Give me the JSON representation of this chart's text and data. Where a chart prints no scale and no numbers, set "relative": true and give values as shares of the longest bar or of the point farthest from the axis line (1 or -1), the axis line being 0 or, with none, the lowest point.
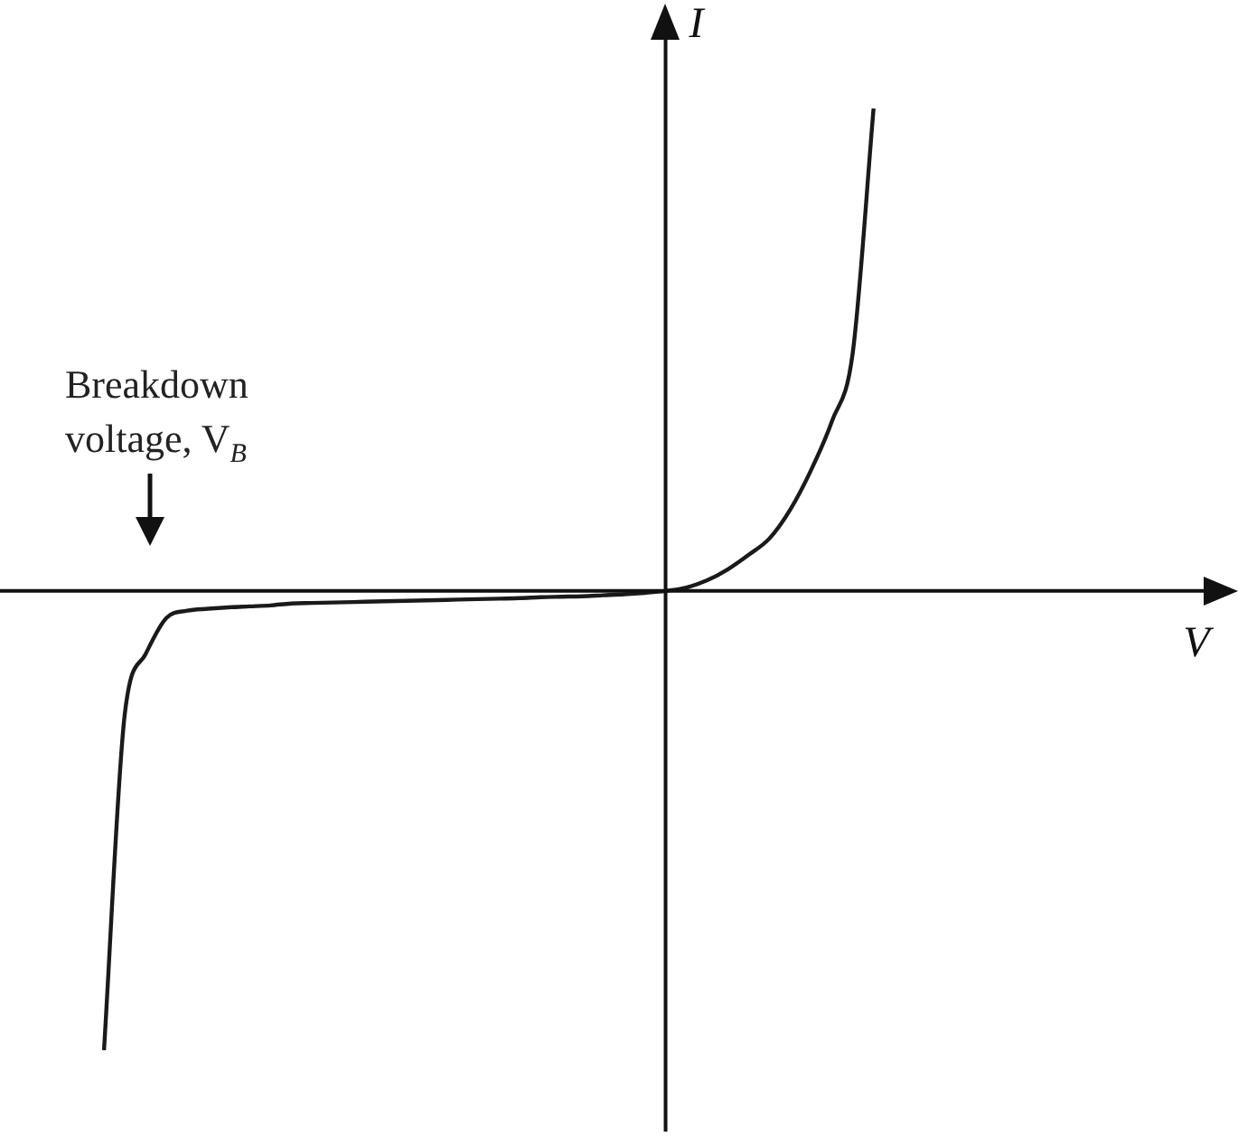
{
  "chart_data": {
    "type": "line",
    "relative": true,
    "xlabel": "V",
    "ylabel": "I",
    "annotations": [
      "Breakdown voltage, V$_{B}$"
    ],
    "categories": [
      null,
      null,
      null,
      null,
      null,
      null,
      null,
      null,
      null,
      null,
      null,
      null,
      null,
      null,
      null,
      null,
      null,
      null,
      null,
      null,
      null,
      null,
      null,
      null,
      null,
      null,
      null,
      null,
      null,
      null,
      null,
      null,
      null,
      null,
      null,
      null,
      null,
      null,
      null,
      null,
      null,
      null,
      null,
      null,
      null,
      null,
      null,
      null,
      null,
      null,
      null,
      null,
      null,
      null,
      null,
      null,
      null,
      null,
      null,
      null
    ],
    "series": [
      {
        "color": "#1a1a1a",
        "values": [
          null,
          null,
          null,
          null,
          null,
          -0.952,
          -0.255,
          -0.131,
          -0.056,
          -0.041,
          -0.037,
          -0.034,
          -0.032,
          -0.03,
          -0.026,
          -0.025,
          -0.024,
          -0.023,
          -0.022,
          -0.021,
          -0.02,
          -0.019,
          -0.018,
          -0.017,
          -0.016,
          -0.015,
          -0.013,
          -0.012,
          -0.011,
          -0.009,
          -0.007,
          -0.004,
          0,
          0.007,
          0.022,
          0.045,
          0.075,
          0.109,
          0.169,
          0.251,
          0.352,
          0.494,
          1.0,
          null,
          null,
          null,
          null,
          null,
          null,
          null,
          null,
          null,
          null,
          null,
          null,
          null,
          null,
          null,
          null,
          null
        ]
      }
    ],
    "legend": false,
    "marker": "none",
    "line_style": "solid"
  }
}
